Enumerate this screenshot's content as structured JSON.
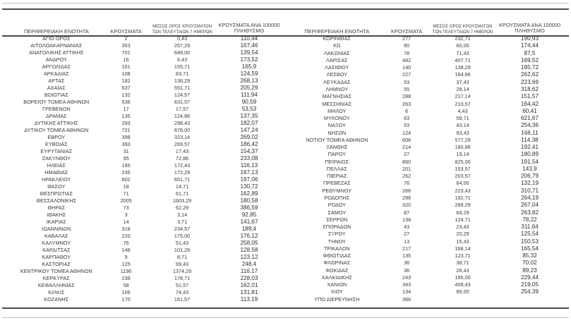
{
  "document": {
    "language": "el",
    "kind": "regional-covid-cases-table"
  },
  "colors": {
    "rule_dark": "#4a4a4a",
    "rule_light": "#bdbdbd",
    "text": "#3a3a3a"
  },
  "headers": {
    "region": "ΠΕΡΙΦΕΡΕΙΑΚΗ ΕΝΟΤΗΤΑ",
    "cases": "ΚΡΟΥΣΜΑΤΑ",
    "avg7_line1": "ΜΕΣΟΣ ΟΡΟΣ ΚΡΟΥΣΜΑΤΩΝ",
    "avg7_line2": "ΤΩΝ ΤΕΛΕΥΤΑΙΩΝ 7 ΗΜΕΡΩΝ",
    "per100k_line1": "ΚΡΟΥΣΜΑΤΑ ΑΝΑ 100000",
    "per100k_line2": "ΠΛΗΘΥΣΜΟ"
  },
  "left_table": {
    "rows": [
      [
        "ΑΓΙΟ ΟΡΟΣ",
        "2",
        "0,43",
        "110,44"
      ],
      [
        "ΑΙΤΩΛΟΑΚΑΡΝΑΝΙΑΣ",
        "353",
        "257,29",
        "167,46"
      ],
      [
        "ΑΝΑΤΟΛΙΚΗΣ ΑΤΤΙΚΗΣ",
        "701",
        "648,00",
        "139,54"
      ],
      [
        "ΑΝΔΡΟΥ",
        "16",
        "6,43",
        "173,52"
      ],
      [
        "ΑΡΓΟΛΙΔΑΣ",
        "161",
        "155,71",
        "165,9"
      ],
      [
        "ΑΡΚΑΔΙΑΣ",
        "108",
        "83,71",
        "124,59"
      ],
      [
        "ΑΡΤΑΣ",
        "182",
        "136,29",
        "268,13"
      ],
      [
        "ΑΧΑΪΑΣ",
        "637",
        "551,71",
        "205,29"
      ],
      [
        "ΒΟΙΩΤΙΑΣ",
        "132",
        "124,57",
        "111,94"
      ],
      [
        "ΒΟΡΕΙΟΥ ΤΟΜΕΑ ΑΘΗΝΩΝ",
        "536",
        "631,57",
        "90,59"
      ],
      [
        "ΓΡΕΒΕΝΩΝ",
        "17",
        "17,57",
        "53,53"
      ],
      [
        "ΔΡΑΜΑΣ",
        "135",
        "124,86",
        "137,35"
      ],
      [
        "ΔΥΤΙΚΗΣ ΑΤΤΙΚΗΣ",
        "293",
        "298,43",
        "182,07"
      ],
      [
        "ΔΥΤΙΚΟΥ ΤΟΜΕΑ ΑΘΗΝΩΝ",
        "721",
        "678,00",
        "147,24"
      ],
      [
        "ΕΒΡΟΥ",
        "398",
        "323,14",
        "269,02"
      ],
      [
        "ΕΥΒΟΙΑΣ",
        "393",
        "269,57",
        "186,42"
      ],
      [
        "ΕΥΡΥΤΑΝΙΑΣ",
        "31",
        "17,43",
        "154,37"
      ],
      [
        "ΖΑΚΥΝΘΟΥ",
        "95",
        "72,86",
        "233,08"
      ],
      [
        "ΗΛΕΙΑΣ",
        "185",
        "172,43",
        "116,13"
      ],
      [
        "ΗΜΑΘΙΑΣ",
        "235",
        "172,29",
        "167,13"
      ],
      [
        "ΗΡΑΚΛΕΙΟΥ",
        "602",
        "651,71",
        "197,06"
      ],
      [
        "ΘΑΣΟΥ",
        "18",
        "14,71",
        "130,72"
      ],
      [
        "ΘΕΣΠΡΩΤΙΑΣ",
        "71",
        "61,71",
        "162,89"
      ],
      [
        "ΘΕΣΣΑΛΟΝΙΚΗΣ",
        "2005",
        "1603,29",
        "180,58"
      ],
      [
        "ΘΗΡΑΣ",
        "73",
        "62,29",
        "386,59"
      ],
      [
        "ΙΘΑΚΗΣ",
        "3",
        "3,14",
        "92,85"
      ],
      [
        "ΙΚΑΡΙΑΣ",
        "14",
        "3,71",
        "141,67"
      ],
      [
        "ΙΩΑΝΝΙΝΩΝ",
        "318",
        "234,57",
        "189,4"
      ],
      [
        "ΚΑΒΑΛΑΣ",
        "220",
        "175,00",
        "176,12"
      ],
      [
        "ΚΑΛΥΜΝΟΥ",
        "76",
        "51,43",
        "258,05"
      ],
      [
        "ΚΑΡΔΙΤΣΑΣ",
        "146",
        "101,29",
        "128,58"
      ],
      [
        "ΚΑΡΠΑΘΟΥ",
        "9",
        "8,71",
        "123,12"
      ],
      [
        "ΚΑΣΤΟΡΙΑΣ",
        "125",
        "99,43",
        "248,4"
      ],
      [
        "ΚΕΝΤΡΙΚΟΥ ΤΟΜΕΑ ΑΘΗΝΩΝ",
        "1196",
        "1374,29",
        "116,17"
      ],
      [
        "ΚΕΡΚΥΡΑΣ",
        "238",
        "178,71",
        "228,03"
      ],
      [
        "ΚΕΦΑΛΛΗΝΙΑΣ",
        "58",
        "51,57",
        "162,01"
      ],
      [
        "ΚΙΛΚΙΣ",
        "106",
        "74,43",
        "131,81"
      ],
      [
        "ΚΟΖΑΝΗΣ",
        "170",
        "161,57",
        "113,19"
      ]
    ]
  },
  "right_table": {
    "rows": [
      [
        "ΚΟΡΙΝΘΙΑΣ",
        "277",
        "232,71",
        "190,93"
      ],
      [
        "ΚΩ",
        "60",
        "60,00",
        "174,44"
      ],
      [
        "ΛΑΚΩΝΙΑΣ",
        "78",
        "71,43",
        "87,5"
      ],
      [
        "ΛΑΡΙΣΑΣ",
        "482",
        "407,71",
        "169,52"
      ],
      [
        "ΛΑΣΙΘΙΟΥ",
        "140",
        "138,29",
        "185,72"
      ],
      [
        "ΛΕΣΒΟΥ",
        "227",
        "164,86",
        "262,62"
      ],
      [
        "ΛΕΥΚΑΔΑΣ",
        "53",
        "37,43",
        "223,69"
      ],
      [
        "ΛΗΜΝΟΥ",
        "55",
        "28,14",
        "318,62"
      ],
      [
        "ΜΑΓΝΗΣΙΑΣ",
        "288",
        "217,14",
        "151,57"
      ],
      [
        "ΜΕΣΣΗΝΙΑΣ",
        "263",
        "210,57",
        "164,42"
      ],
      [
        "ΜΗΛΟΥ",
        "6",
        "4,43",
        "60,41"
      ],
      [
        "ΜΥΚΟΝΟΥ",
        "63",
        "58,71",
        "621,67"
      ],
      [
        "ΝΑΞΟΥ",
        "53",
        "43,14",
        "254,36"
      ],
      [
        "ΝΗΣΩΝ",
        "124",
        "93,43",
        "166,11"
      ],
      [
        "ΝΟΤΙΟΥ ΤΟΜΕΑ ΑΘΗΝΩΝ",
        "606",
        "577,29",
        "114,38"
      ],
      [
        "ΞΑΝΘΗΣ",
        "214",
        "180,86",
        "192,41"
      ],
      [
        "ΠΑΡΟΥ",
        "27",
        "19,14",
        "180,89"
      ],
      [
        "ΠΕΙΡΑΙΩΣ",
        "860",
        "825,00",
        "191,54"
      ],
      [
        "ΠΕΛΛΑΣ",
        "201",
        "153,57",
        "143,9"
      ],
      [
        "ΠΙΕΡΙΑΣ",
        "262",
        "203,57",
        "206,79"
      ],
      [
        "ΠΡΕΒΕΖΑΣ",
        "76",
        "64,00",
        "132,19"
      ],
      [
        "ΡΕΘΥΜΝΟΥ",
        "266",
        "223,43",
        "310,71"
      ],
      [
        "ΡΟΔΟΠΗΣ",
        "296",
        "192,71",
        "264,19"
      ],
      [
        "ΡΟΔΟΥ",
        "320",
        "289,29",
        "267,04"
      ],
      [
        "ΣΑΜΟΥ",
        "87",
        "64,29",
        "263,82"
      ],
      [
        "ΣΕΡΡΩΝ",
        "138",
        "124,71",
        "78,22"
      ],
      [
        "ΣΠΟΡΑΔΩΝ",
        "43",
        "23,43",
        "311,64"
      ],
      [
        "ΣΥΡΟΥ",
        "27",
        "20,29",
        "125,54"
      ],
      [
        "ΤΗΝΟΥ",
        "13",
        "15,43",
        "150,53"
      ],
      [
        "ΤΡΙΚΑΛΩΝ",
        "217",
        "168,14",
        "165,54"
      ],
      [
        "ΦΘΙΩΤΙΔΑΣ",
        "135",
        "123,71",
        "85,32"
      ],
      [
        "ΦΛΩΡΙΝΑΣ",
        "36",
        "38,71",
        "70,02"
      ],
      [
        "ΦΩΚΙΔΑΣ",
        "36",
        "26,43",
        "89,23"
      ],
      [
        "ΧΑΛΚΙΔΙΚΗΣ",
        "243",
        "195,00",
        "229,44"
      ],
      [
        "ΧΑΝΙΩΝ",
        "343",
        "408,43",
        "219,05"
      ],
      [
        "ΧΙΟΥ",
        "134",
        "89,00",
        "254,39"
      ],
      [
        "ΥΠΟ ΔΙΕΡΕΥΝΗΣΗ",
        "366",
        "",
        ""
      ]
    ]
  }
}
